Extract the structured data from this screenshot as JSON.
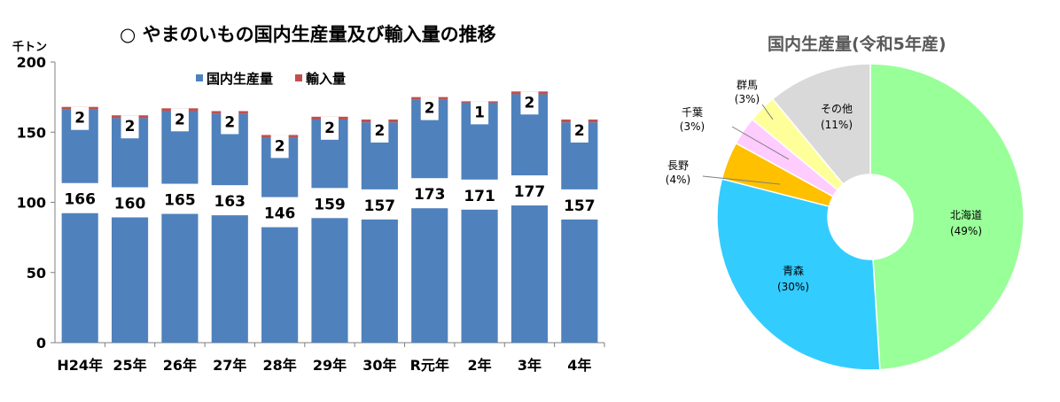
{
  "chart_data": [
    {
      "type": "bar",
      "title": "○ やまのいもの国内生産量及び輸入量の推移",
      "ylabel": "千トン",
      "ylim": [
        0,
        200
      ],
      "yticks": [
        "0",
        "50",
        "100",
        "150",
        "200"
      ],
      "grid": false,
      "legend": "top-left",
      "stacked": true,
      "categories": [
        "H24年",
        "25年",
        "26年",
        "27年",
        "28年",
        "29年",
        "30年",
        "R元年",
        "2年",
        "3年",
        "4年"
      ],
      "series": [
        {
          "name": "国内生産量",
          "color": "#4f81bd",
          "values": [
            166,
            160,
            165,
            163,
            146,
            159,
            157,
            173,
            171,
            177,
            157
          ]
        },
        {
          "name": "輸入量",
          "color": "#c0504d",
          "values": [
            2,
            2,
            2,
            2,
            2,
            2,
            2,
            2,
            1,
            2,
            2
          ]
        }
      ]
    },
    {
      "type": "pie",
      "title": "国内生産量(令和5年産)",
      "slices": [
        {
          "label": "北海道",
          "pct_label": "(49%)",
          "value": 49,
          "color": "#99ff99"
        },
        {
          "label": "青森",
          "pct_label": "(30%)",
          "value": 30,
          "color": "#33ccff"
        },
        {
          "label": "長野",
          "pct_label": "(4%)",
          "value": 4,
          "color": "#ffc000"
        },
        {
          "label": "千葉",
          "pct_label": "(3%)",
          "value": 3,
          "color": "#ffccff"
        },
        {
          "label": "群馬",
          "pct_label": "(3%)",
          "value": 3,
          "color": "#ffff99"
        },
        {
          "label": "その他",
          "pct_label": "(11%)",
          "value": 11,
          "color": "#d9d9d9"
        }
      ]
    }
  ]
}
